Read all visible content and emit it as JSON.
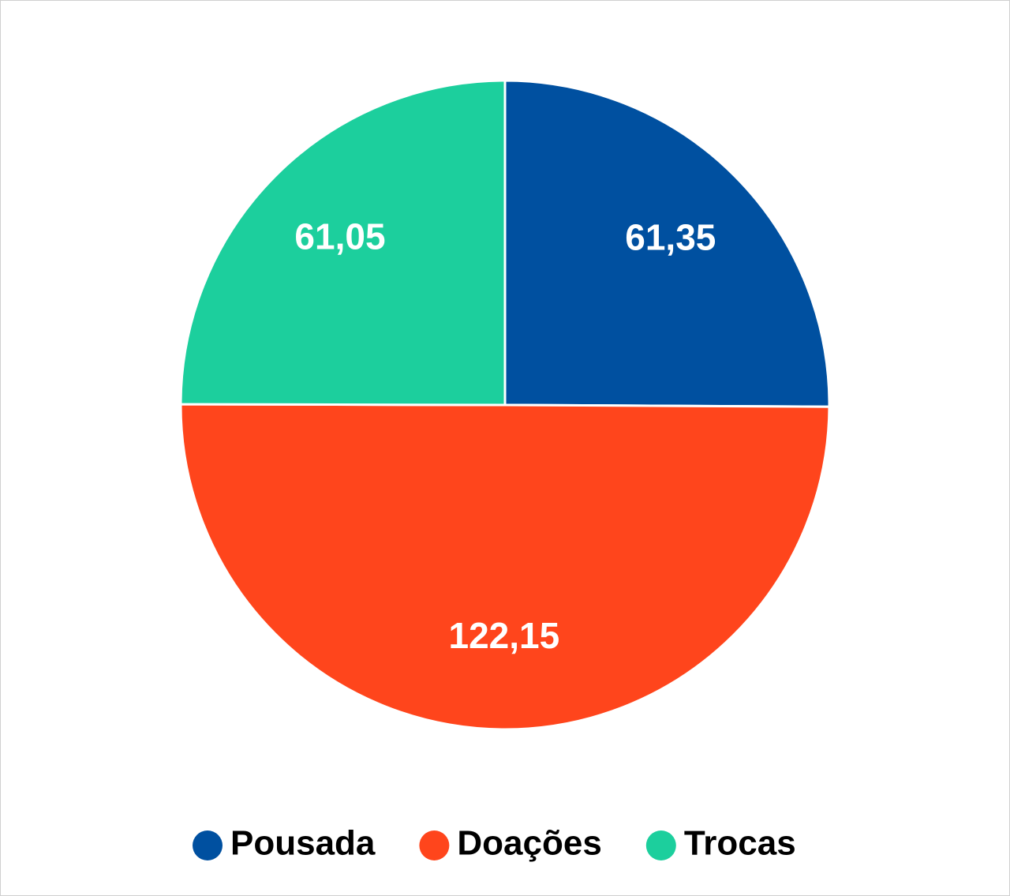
{
  "chart_data": {
    "type": "pie",
    "categories": [
      "Pousada",
      "Doações",
      "Trocas"
    ],
    "values": [
      61.35,
      122.15,
      61.05
    ],
    "value_labels": [
      "61,35",
      "122,15",
      "61,05"
    ],
    "colors": [
      "#0050a0",
      "#ff451c",
      "#1ccf9d"
    ]
  }
}
